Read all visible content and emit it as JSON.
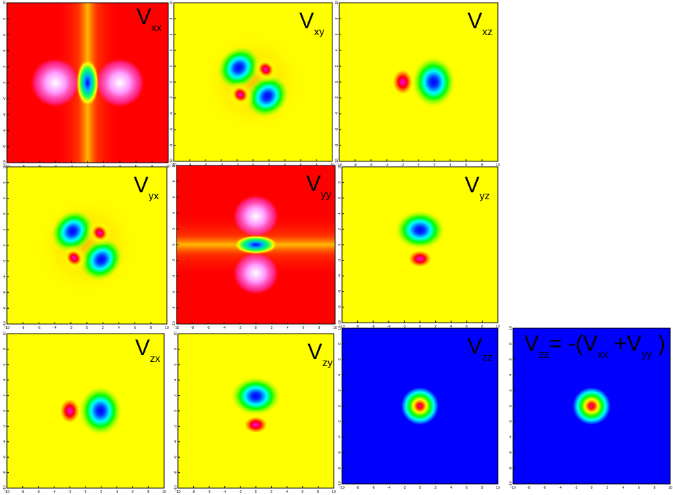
{
  "chart_data": {
    "type": "heatmap",
    "x_ticks": [
      "-10",
      "-8",
      "-6",
      "-4",
      "-2",
      "0",
      "2",
      "4",
      "6",
      "8",
      "10"
    ],
    "y_ticks": [
      "10",
      "8",
      "6",
      "4",
      "2",
      "0",
      "-2",
      "-4",
      "-6",
      "-8",
      "-10"
    ],
    "xlim": [
      -10,
      10
    ],
    "ylim": [
      -10,
      10
    ],
    "colormap": [
      "#ff00ff",
      "#ff0000",
      "#ffff00",
      "#00ff00",
      "#0000ff"
    ],
    "panels": [
      {
        "label": "V",
        "sub": "xx",
        "background": "#ff0000",
        "pattern": "xx"
      },
      {
        "label": "V",
        "sub": "xy",
        "background": "#ffff00",
        "pattern": "xy"
      },
      {
        "label": "V",
        "sub": "xz",
        "background": "#ffff00",
        "pattern": "xz"
      },
      {
        "label": "V",
        "sub": "yx",
        "background": "#ffff00",
        "pattern": "xy"
      },
      {
        "label": "V",
        "sub": "yy",
        "background": "#ff0000",
        "pattern": "yy"
      },
      {
        "label": "V",
        "sub": "yz",
        "background": "#ffff00",
        "pattern": "yz"
      },
      {
        "label": "V",
        "sub": "zx",
        "background": "#ffff00",
        "pattern": "xz"
      },
      {
        "label": "V",
        "sub": "zy",
        "background": "#ffff00",
        "pattern": "yz"
      },
      {
        "label": "V",
        "sub": "zz",
        "background": "#0000ff",
        "pattern": "zz"
      },
      {
        "label": "V",
        "sub": "zz",
        "formula": "= -(V",
        "formula_sub1": "xx",
        "formula_mid": " +V",
        "formula_sub2": "yy",
        "formula_end": " )",
        "background": "#0000ff",
        "pattern": "zz"
      }
    ]
  }
}
